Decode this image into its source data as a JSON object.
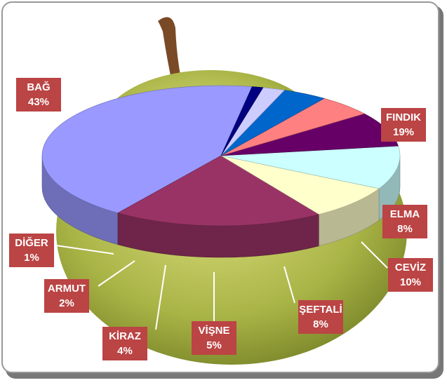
{
  "chart_data": {
    "type": "pie",
    "categories": [
      "BAĞ",
      "FINDIK",
      "ELMA",
      "CEVİZ",
      "ŞEFTALİ",
      "VİŞNE",
      "KİRAZ",
      "ARMUT",
      "DİĞER"
    ],
    "values": [
      43,
      19,
      8,
      10,
      8,
      5,
      4,
      2,
      1
    ],
    "value_labels": [
      "43%",
      "19%",
      "8%",
      "10%",
      "8%",
      "5%",
      "4%",
      "2%",
      "1%"
    ],
    "colors": [
      "#9999ff",
      "#993366",
      "#ffffcc",
      "#ccffff",
      "#660066",
      "#ff8080",
      "#0066cc",
      "#ccccff",
      "#000080"
    ]
  }
}
